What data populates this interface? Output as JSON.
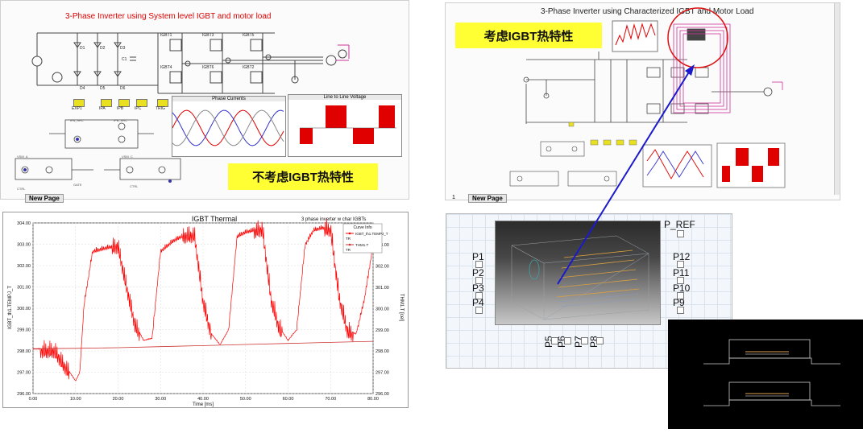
{
  "panel_left": {
    "title": "3-Phase Inverter using System level IGBT and motor load",
    "annotation": "不考虑IGBT热特性",
    "tab_label": "New Page",
    "buttons": [
      "EXP1",
      "IPA",
      "IPB",
      "IPC",
      "TRIG"
    ],
    "diodes": [
      "D1",
      "D2",
      "D3",
      "D4",
      "D5",
      "D6"
    ],
    "plot1_title": "Phase Currents",
    "plot2_title": "Line to Line Voltage"
  },
  "panel_right": {
    "title": "3-Phase Inverter using Characterized IGBT and Motor Load",
    "annotation": "考虑IGBT热特性",
    "tab_label": "New Page",
    "tab_number": "1"
  },
  "thermal_plot": {
    "title": "IGBT Thermal",
    "subtitle": "3 phase inverter w char IGBTs",
    "legend_title": "Curve Info",
    "legend_items": [
      {
        "label": "IGBT_th1.TEMPJ_T",
        "sub": "TR",
        "color": "#ff0000"
      },
      {
        "label": "THM1.T",
        "sub": "TR",
        "color": "#cc3333"
      }
    ],
    "xlabel": "Time [ms]",
    "ylabel_left": "IGBT_th1.TEMPJ_T",
    "ylabel_right": "THM1.T [cel]",
    "x_ticks": [
      "0.00",
      "10.00",
      "20.00",
      "30.00",
      "40.00",
      "50.00",
      "60.00",
      "70.00",
      "80.00"
    ],
    "y_ticks_left": [
      "304.00",
      "303.00",
      "302.00",
      "301.00",
      "300.00",
      "299.00",
      "298.00",
      "297.00",
      "296.00"
    ],
    "y_ticks_right": [
      "303.00",
      "302.00",
      "301.00",
      "300.00",
      "299.00",
      "298.00",
      "297.00",
      "296.00"
    ]
  },
  "chart_data": {
    "type": "line",
    "title": "IGBT Thermal",
    "xlabel": "Time [ms]",
    "ylabel": "IGBT_th1.TEMPJ_T",
    "xlim": [
      0,
      80
    ],
    "ylim": [
      296,
      304
    ],
    "series": [
      {
        "name": "IGBT_th1.TEMPJ_T",
        "x": [
          0,
          5,
          8,
          10,
          11,
          12,
          14,
          16,
          20,
          22,
          24,
          26,
          28,
          30,
          33,
          36,
          38,
          40,
          42,
          44,
          46,
          48,
          50,
          54,
          56,
          58,
          60,
          62,
          64,
          66,
          68,
          70,
          72,
          74,
          76,
          78,
          80
        ],
        "y": [
          298.1,
          298.1,
          297.2,
          296.6,
          297.0,
          300.2,
          302.7,
          302.8,
          303.0,
          301.1,
          299.3,
          298.5,
          298.6,
          302.7,
          303.2,
          303.5,
          303.5,
          300.4,
          298.8,
          298.3,
          299.0,
          303.4,
          303.6,
          303.8,
          300.5,
          299.1,
          298.5,
          299.0,
          303.0,
          303.7,
          303.8,
          303.8,
          300.6,
          299.0,
          298.8,
          300.5,
          303.0
        ]
      },
      {
        "name": "THM1.T",
        "x": [
          0,
          10,
          20,
          30,
          40,
          50,
          60,
          70,
          80
        ],
        "y": [
          298.1,
          298.12,
          298.15,
          298.2,
          298.25,
          298.3,
          298.35,
          298.4,
          298.45
        ]
      }
    ]
  },
  "model_view": {
    "port_labels_left": [
      "P1",
      "P2",
      "P3",
      "P4"
    ],
    "port_labels_right": [
      "P12",
      "P11",
      "P10",
      "P9"
    ],
    "port_labels_bottom": [
      "P5",
      "P6",
      "P7",
      "P8"
    ],
    "port_top": "P_REF"
  }
}
